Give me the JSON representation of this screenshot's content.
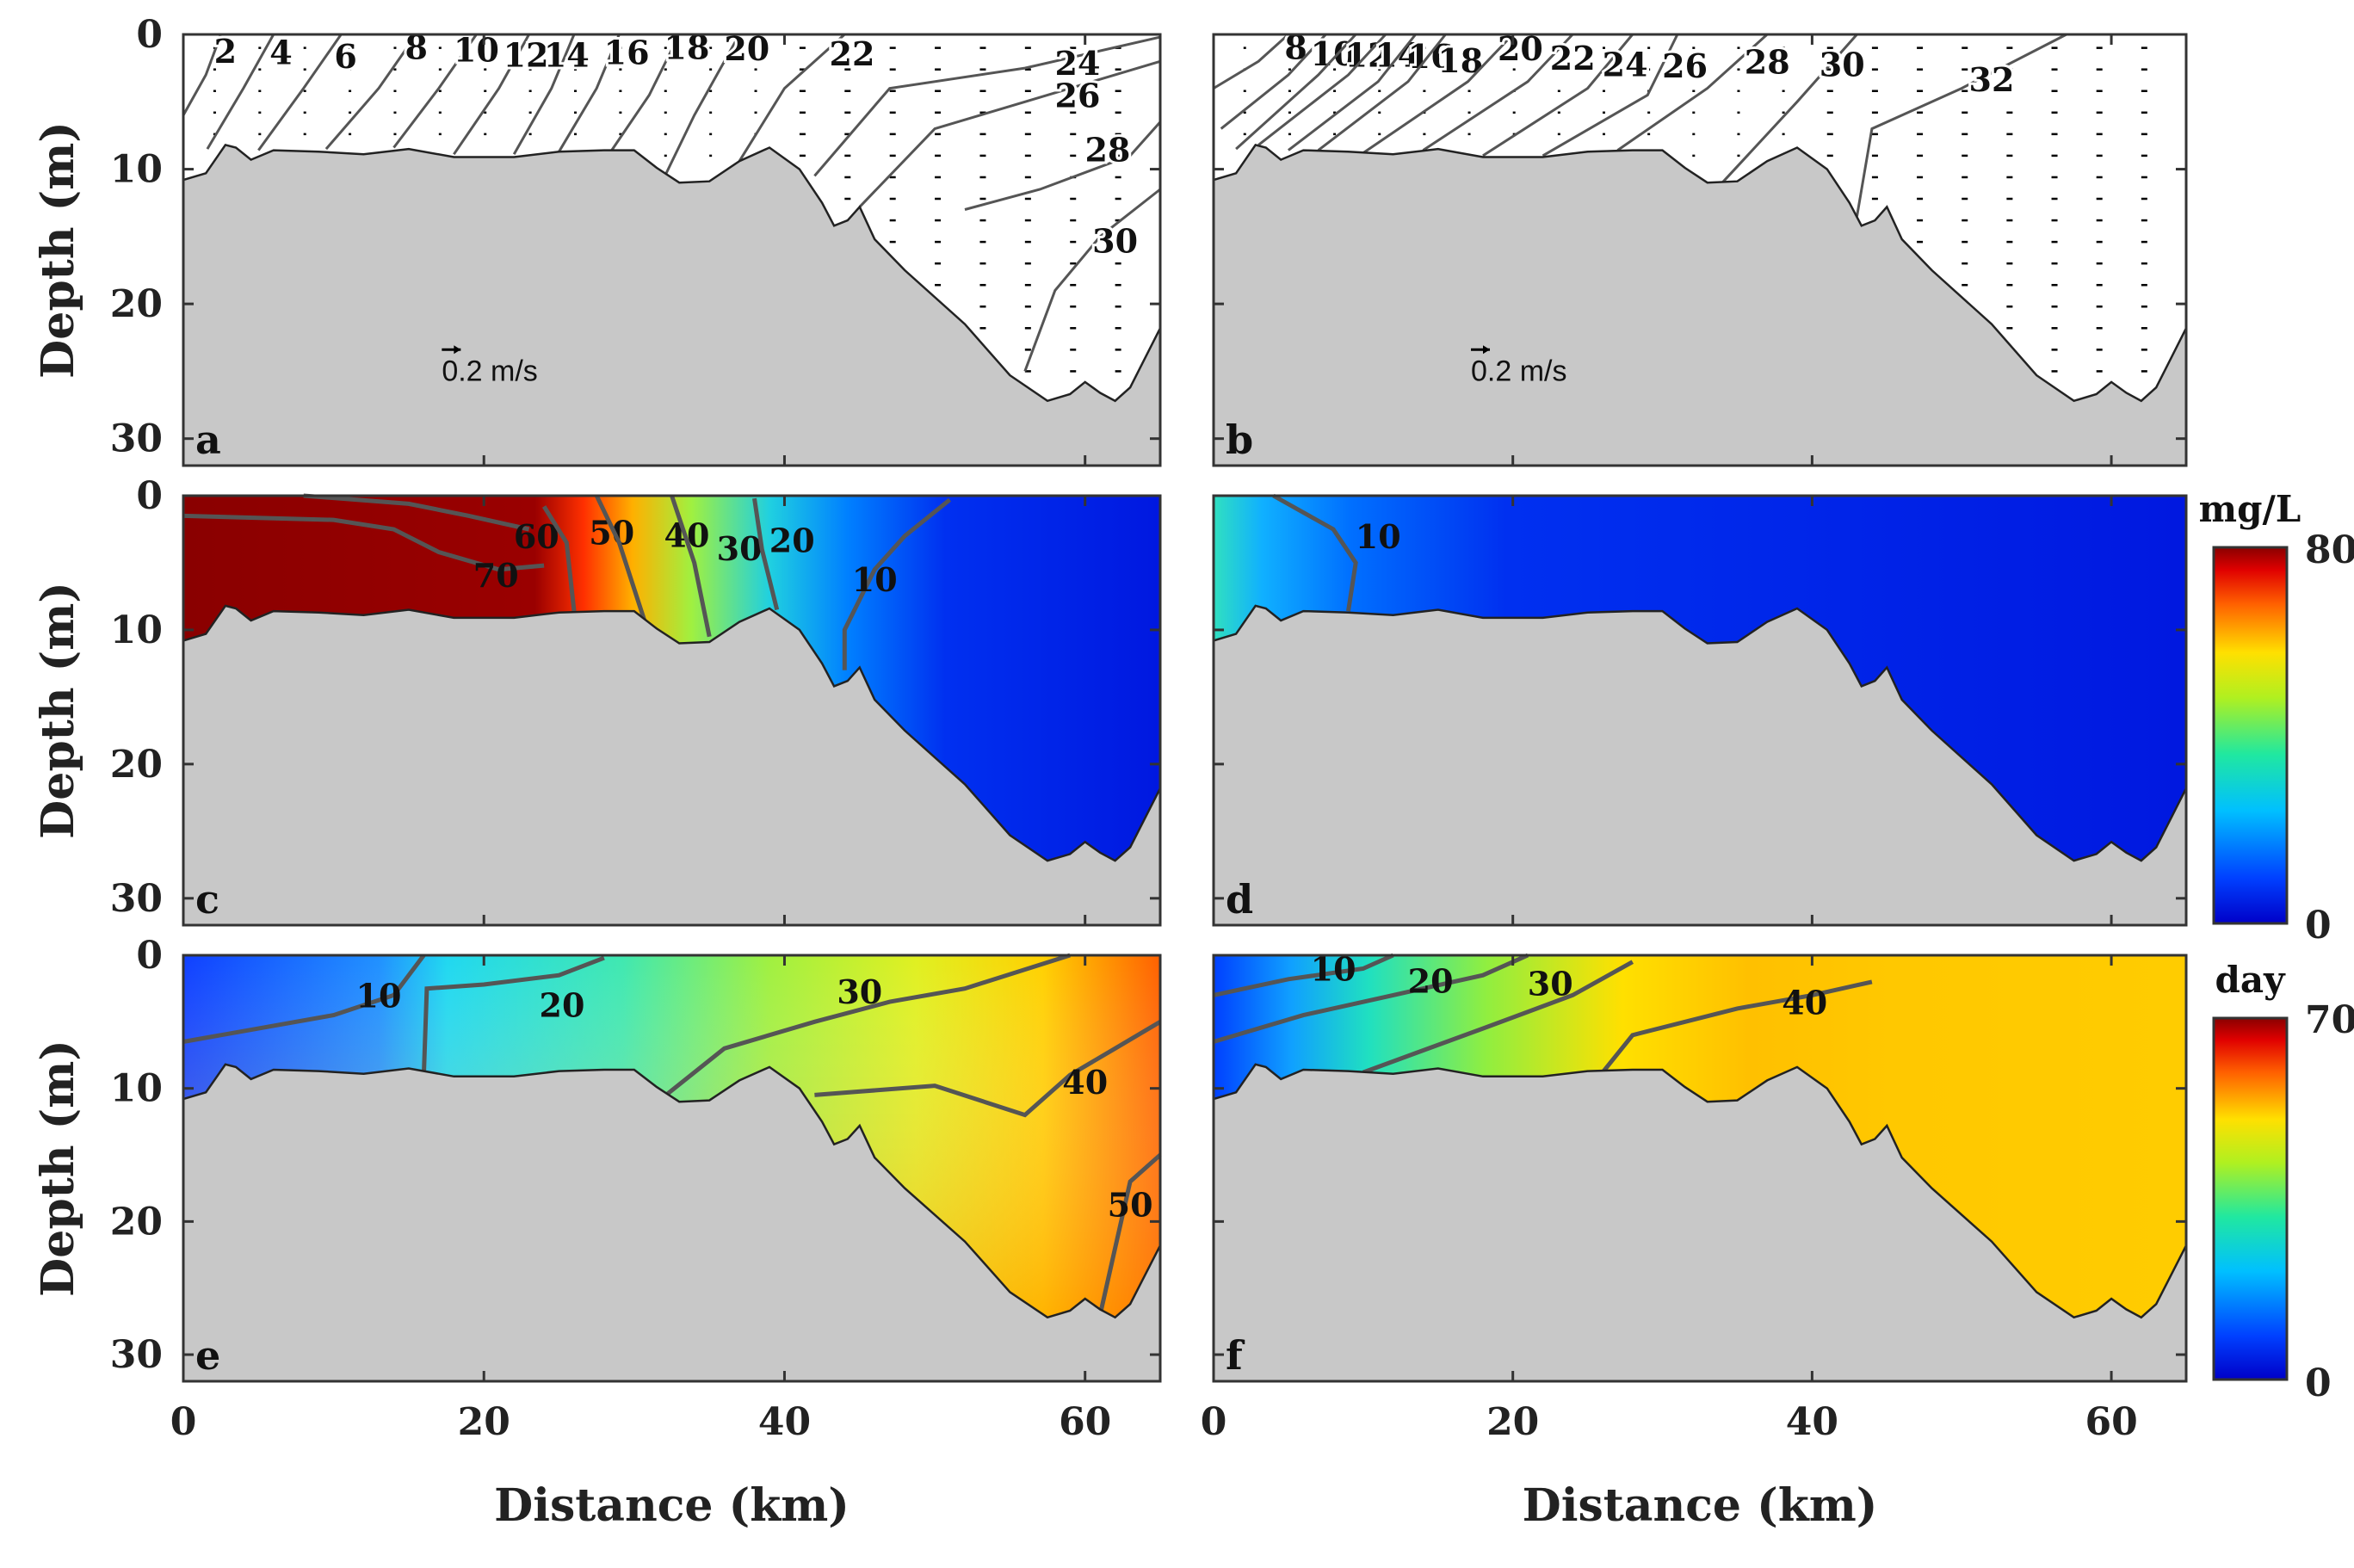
{
  "chart_data": [
    {
      "id": "a",
      "panel_label": "a",
      "type": "contour",
      "field": "salinity",
      "xlim": [
        0,
        65
      ],
      "ylim": [
        0,
        32
      ],
      "ylabel": "Depth (m)",
      "xlabel": "",
      "yticks": [
        "0",
        "10",
        "20",
        "30"
      ],
      "xticks": [],
      "contour_labels": [
        "2",
        "4",
        "6",
        "8",
        "10",
        "12",
        "14",
        "16",
        "18",
        "20",
        "22",
        "24",
        "26",
        "28",
        "30"
      ],
      "scale_label": "0.2 m/s"
    },
    {
      "id": "b",
      "panel_label": "b",
      "type": "contour",
      "field": "salinity",
      "xlim": [
        0,
        65
      ],
      "ylim": [
        0,
        32
      ],
      "ylabel": "",
      "xlabel": "",
      "yticks": [],
      "xticks": [],
      "contour_labels": [
        "8",
        "10",
        "12",
        "14",
        "16",
        "18",
        "20",
        "22",
        "24",
        "26",
        "28",
        "30",
        "32"
      ],
      "scale_label": "0.2 m/s"
    },
    {
      "id": "c",
      "panel_label": "c",
      "type": "heatmap",
      "field": "concentration",
      "xlim": [
        0,
        65
      ],
      "ylim": [
        0,
        32
      ],
      "ylabel": "Depth (m)",
      "xlabel": "",
      "yticks": [
        "0",
        "10",
        "20",
        "30"
      ],
      "xticks": [],
      "contour_labels": [
        "70",
        "60",
        "50",
        "40",
        "30",
        "20",
        "10"
      ]
    },
    {
      "id": "d",
      "panel_label": "d",
      "type": "heatmap",
      "field": "concentration",
      "xlim": [
        0,
        65
      ],
      "ylim": [
        0,
        32
      ],
      "ylabel": "",
      "xlabel": "",
      "yticks": [],
      "xticks": [],
      "contour_labels": [
        "10"
      ]
    },
    {
      "id": "e",
      "panel_label": "e",
      "type": "heatmap",
      "field": "age",
      "xlim": [
        0,
        65
      ],
      "ylim": [
        0,
        32
      ],
      "ylabel": "Depth (m)",
      "xlabel": "Distance (km)",
      "yticks": [
        "0",
        "10",
        "20",
        "30"
      ],
      "xticks": [
        "0",
        "20",
        "40",
        "60"
      ],
      "contour_labels": [
        "10",
        "20",
        "30",
        "40",
        "50"
      ]
    },
    {
      "id": "f",
      "panel_label": "f",
      "type": "heatmap",
      "field": "age",
      "xlim": [
        0,
        65
      ],
      "ylim": [
        0,
        32
      ],
      "ylabel": "",
      "xlabel": "Distance (km)",
      "yticks": [],
      "xticks": [
        "0",
        "20",
        "40",
        "60"
      ],
      "contour_labels": [
        "10",
        "20",
        "30",
        "40"
      ]
    }
  ],
  "colorbars": [
    {
      "id": "conc",
      "title": "mg/L",
      "min_label": "0",
      "max_label": "80",
      "min": 0,
      "max": 80
    },
    {
      "id": "age",
      "title": "day",
      "min_label": "0",
      "max_label": "70",
      "min": 0,
      "max": 70
    }
  ],
  "colors": {
    "land": "#c8c8c8",
    "contour": "#555555",
    "frame": "#333333"
  }
}
